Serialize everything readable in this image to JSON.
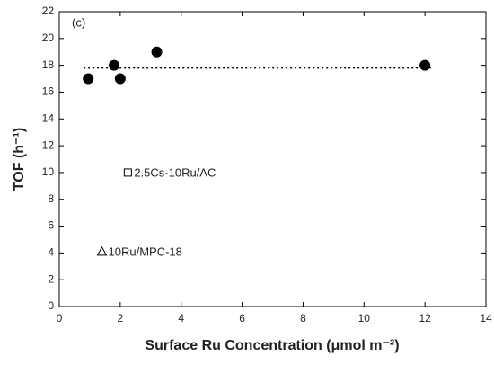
{
  "chart_data": {
    "type": "scatter",
    "annotation": "(c)",
    "x_label": "Surface Ru Concentration (μmol m⁻²)",
    "y_label": "TOF (h⁻¹)",
    "xlim": [
      0,
      14
    ],
    "ylim": [
      0,
      22
    ],
    "xticks": [
      0,
      2,
      4,
      6,
      8,
      10,
      12,
      14
    ],
    "yticks": [
      0,
      2,
      4,
      6,
      8,
      10,
      12,
      14,
      16,
      18,
      20,
      22
    ],
    "series": [
      {
        "marker": "circle",
        "color": "#000000",
        "x": [
          0.95,
          1.8,
          2.0,
          3.2,
          12.0
        ],
        "values": [
          17,
          18,
          17,
          19,
          18
        ]
      },
      {
        "name": "2.5Cs-10Ru/AC",
        "marker": "square",
        "color": "#000000",
        "x": [
          2.25
        ],
        "values": [
          10
        ]
      },
      {
        "name": "10Ru/MPC-18",
        "marker": "triangle",
        "color": "#000000",
        "x": [
          1.4
        ],
        "values": [
          4.1
        ]
      }
    ],
    "reference_line": {
      "y": 17.8,
      "x": [
        0.8,
        12.2
      ],
      "style": "dotted"
    }
  }
}
